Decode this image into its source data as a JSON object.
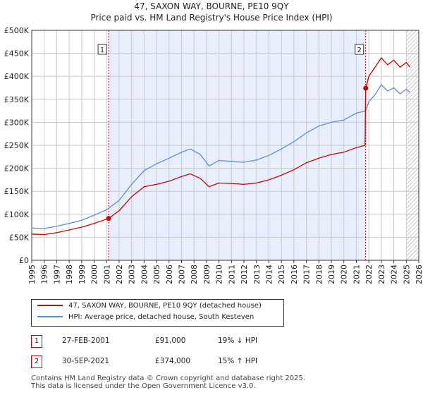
{
  "header": {
    "title": "47, SAXON WAY, BOURNE, PE10 9QY",
    "subtitle": "Price paid vs. HM Land Registry's House Price Index (HPI)"
  },
  "colors": {
    "property": "#cc0000",
    "hpi": "#5b8fd1",
    "shade": "#e8eefc",
    "grid": "#c8c8c8"
  },
  "chart_data": {
    "type": "line",
    "title": "47, SAXON WAY, BOURNE, PE10 9QY",
    "subtitle": "Price paid vs. HM Land Registry's House Price Index (HPI)",
    "xlim": [
      1995,
      2026
    ],
    "ylim": [
      0,
      500000
    ],
    "x_ticks": [
      "1995",
      "1996",
      "1997",
      "1998",
      "1999",
      "2000",
      "2001",
      "2002",
      "2003",
      "2004",
      "2005",
      "2006",
      "2007",
      "2008",
      "2009",
      "2010",
      "2011",
      "2012",
      "2013",
      "2014",
      "2015",
      "2016",
      "2017",
      "2018",
      "2019",
      "2020",
      "2021",
      "2022",
      "2023",
      "2024",
      "2025",
      "2026"
    ],
    "y_ticks": [
      "£0",
      "£50K",
      "£100K",
      "£150K",
      "£200K",
      "£250K",
      "£300K",
      "£350K",
      "£400K",
      "£450K",
      "£500K"
    ],
    "grid": true,
    "legend_position": "below",
    "shaded_range": [
      2001.16,
      2021.75
    ],
    "hatched_from": 2025.0,
    "series": [
      {
        "name": "47, SAXON WAY, BOURNE, PE10 9QY (detached house)",
        "color": "#cc0000",
        "points": [
          [
            1995,
            57000
          ],
          [
            1996,
            56000
          ],
          [
            1997,
            60000
          ],
          [
            1998,
            66000
          ],
          [
            1999,
            72000
          ],
          [
            2000,
            80000
          ],
          [
            2001.16,
            91000
          ],
          [
            2002,
            108000
          ],
          [
            2003,
            138000
          ],
          [
            2004,
            160000
          ],
          [
            2005,
            165000
          ],
          [
            2006,
            172000
          ],
          [
            2007,
            182000
          ],
          [
            2007.7,
            188000
          ],
          [
            2008.5,
            178000
          ],
          [
            2009.2,
            160000
          ],
          [
            2010,
            168000
          ],
          [
            2011,
            167000
          ],
          [
            2012,
            165000
          ],
          [
            2013,
            168000
          ],
          [
            2014,
            175000
          ],
          [
            2015,
            185000
          ],
          [
            2016,
            197000
          ],
          [
            2017,
            212000
          ],
          [
            2018,
            222000
          ],
          [
            2019,
            230000
          ],
          [
            2020,
            235000
          ],
          [
            2021,
            245000
          ],
          [
            2021.7,
            250000
          ],
          [
            2021.75,
            374000
          ],
          [
            2022,
            400000
          ],
          [
            2022.5,
            420000
          ],
          [
            2023,
            440000
          ],
          [
            2023.5,
            425000
          ],
          [
            2024,
            435000
          ],
          [
            2024.5,
            420000
          ],
          [
            2025,
            430000
          ],
          [
            2025.3,
            420000
          ]
        ]
      },
      {
        "name": "HPI: Average price, detached house, South Kesteven",
        "color": "#5b8fd1",
        "points": [
          [
            1995,
            70000
          ],
          [
            1996,
            69000
          ],
          [
            1997,
            74000
          ],
          [
            1998,
            80000
          ],
          [
            1999,
            87000
          ],
          [
            2000,
            98000
          ],
          [
            2001,
            110000
          ],
          [
            2002,
            130000
          ],
          [
            2003,
            165000
          ],
          [
            2004,
            195000
          ],
          [
            2005,
            210000
          ],
          [
            2006,
            222000
          ],
          [
            2007,
            235000
          ],
          [
            2007.7,
            242000
          ],
          [
            2008.5,
            230000
          ],
          [
            2009.2,
            205000
          ],
          [
            2010,
            217000
          ],
          [
            2011,
            215000
          ],
          [
            2012,
            213000
          ],
          [
            2013,
            218000
          ],
          [
            2014,
            228000
          ],
          [
            2015,
            242000
          ],
          [
            2016,
            258000
          ],
          [
            2017,
            277000
          ],
          [
            2018,
            292000
          ],
          [
            2019,
            300000
          ],
          [
            2020,
            305000
          ],
          [
            2021,
            320000
          ],
          [
            2021.75,
            325000
          ],
          [
            2022,
            345000
          ],
          [
            2022.5,
            360000
          ],
          [
            2023,
            382000
          ],
          [
            2023.5,
            368000
          ],
          [
            2024,
            375000
          ],
          [
            2024.5,
            362000
          ],
          [
            2025,
            372000
          ],
          [
            2025.3,
            365000
          ]
        ]
      }
    ],
    "annotations": [
      {
        "label": "1",
        "x": 2001.16,
        "y": 91000
      },
      {
        "label": "2",
        "x": 2021.75,
        "y": 374000
      }
    ]
  },
  "legend": {
    "items": [
      {
        "label": "47, SAXON WAY, BOURNE, PE10 9QY (detached house)"
      },
      {
        "label": "HPI: Average price, detached house, South Kesteven"
      }
    ]
  },
  "sales": [
    {
      "num": "1",
      "date": "27-FEB-2001",
      "price": "£91,000",
      "hpi": "19% ↓ HPI"
    },
    {
      "num": "2",
      "date": "30-SEP-2021",
      "price": "£374,000",
      "hpi": "15% ↑ HPI"
    }
  ],
  "footer": {
    "line1": "Contains HM Land Registry data © Crown copyright and database right 2025.",
    "line2": "This data is licensed under the Open Government Licence v3.0."
  }
}
